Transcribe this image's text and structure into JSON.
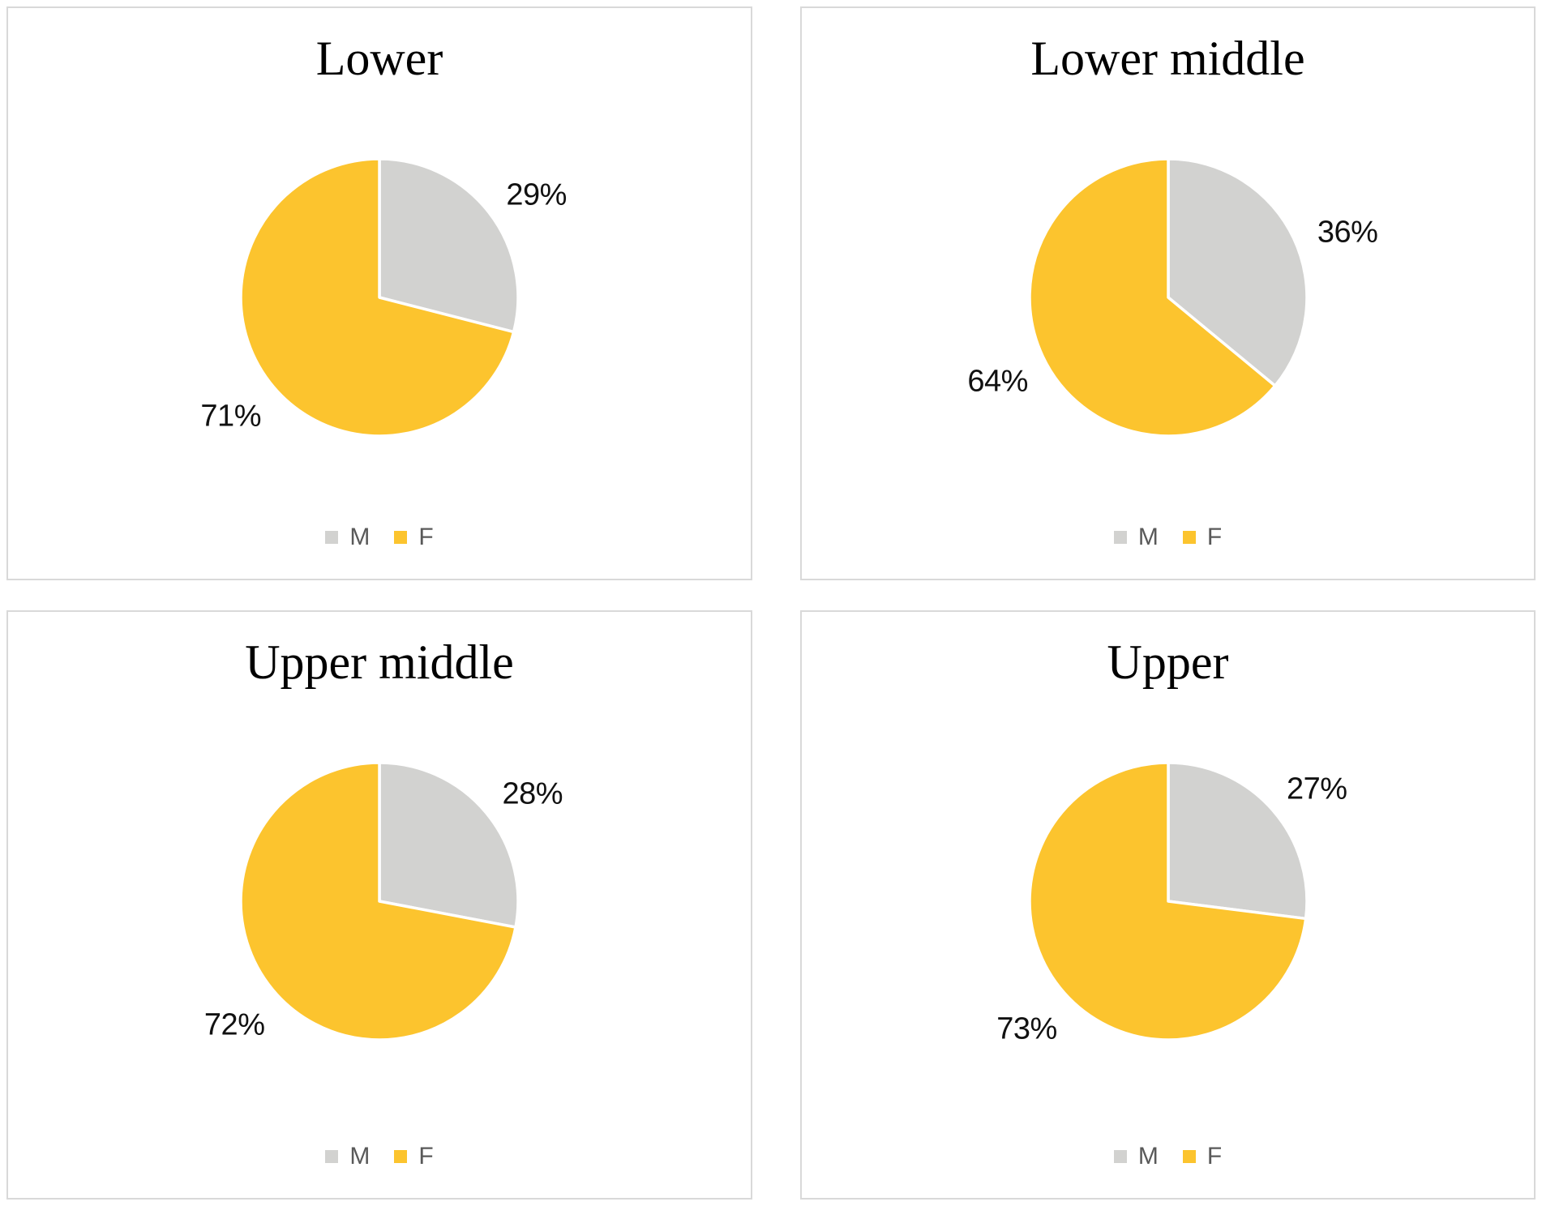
{
  "figure_title": "",
  "palette": {
    "male_slice": "#D2D2D0",
    "female_slice": "#FCC42E",
    "slice_border": "#FFFFFF",
    "legend_text": "#595959",
    "panel_border": "#D9D9D9",
    "label_text": "#111111",
    "title_text": "#000000"
  },
  "legend": {
    "items": [
      {
        "label": "M",
        "color": "#D2D2D0"
      },
      {
        "label": "F",
        "color": "#FCC42E"
      }
    ],
    "position": "bottom"
  },
  "chart_data": [
    {
      "type": "pie",
      "title": "Lower",
      "labels": [
        "M",
        "F"
      ],
      "values": [
        29,
        71
      ],
      "data_labels": [
        "29%",
        "71%"
      ],
      "colors": [
        "#D2D2D0",
        "#FCC42E"
      ],
      "start_angle_deg": 0,
      "direction": "clockwise",
      "slice_border_color": "#FFFFFF",
      "legend_position": "bottom",
      "legend_entries": [
        "M",
        "F"
      ]
    },
    {
      "type": "pie",
      "title": "Lower middle",
      "labels": [
        "M",
        "F"
      ],
      "values": [
        36,
        64
      ],
      "data_labels": [
        "36%",
        "64%"
      ],
      "colors": [
        "#D2D2D0",
        "#FCC42E"
      ],
      "start_angle_deg": 0,
      "direction": "clockwise",
      "slice_border_color": "#FFFFFF",
      "legend_position": "bottom",
      "legend_entries": [
        "M",
        "F"
      ]
    },
    {
      "type": "pie",
      "title": "Upper middle",
      "labels": [
        "M",
        "F"
      ],
      "values": [
        28,
        72
      ],
      "data_labels": [
        "28%",
        "72%"
      ],
      "colors": [
        "#D2D2D0",
        "#FCC42E"
      ],
      "start_angle_deg": 0,
      "direction": "clockwise",
      "slice_border_color": "#FFFFFF",
      "legend_position": "bottom",
      "legend_entries": [
        "M",
        "F"
      ]
    },
    {
      "type": "pie",
      "title": "Upper",
      "labels": [
        "M",
        "F"
      ],
      "values": [
        27,
        73
      ],
      "data_labels": [
        "27%",
        "73%"
      ],
      "colors": [
        "#D2D2D0",
        "#FCC42E"
      ],
      "start_angle_deg": 0,
      "direction": "clockwise",
      "slice_border_color": "#FFFFFF",
      "legend_position": "bottom",
      "legend_entries": [
        "M",
        "F"
      ]
    }
  ]
}
